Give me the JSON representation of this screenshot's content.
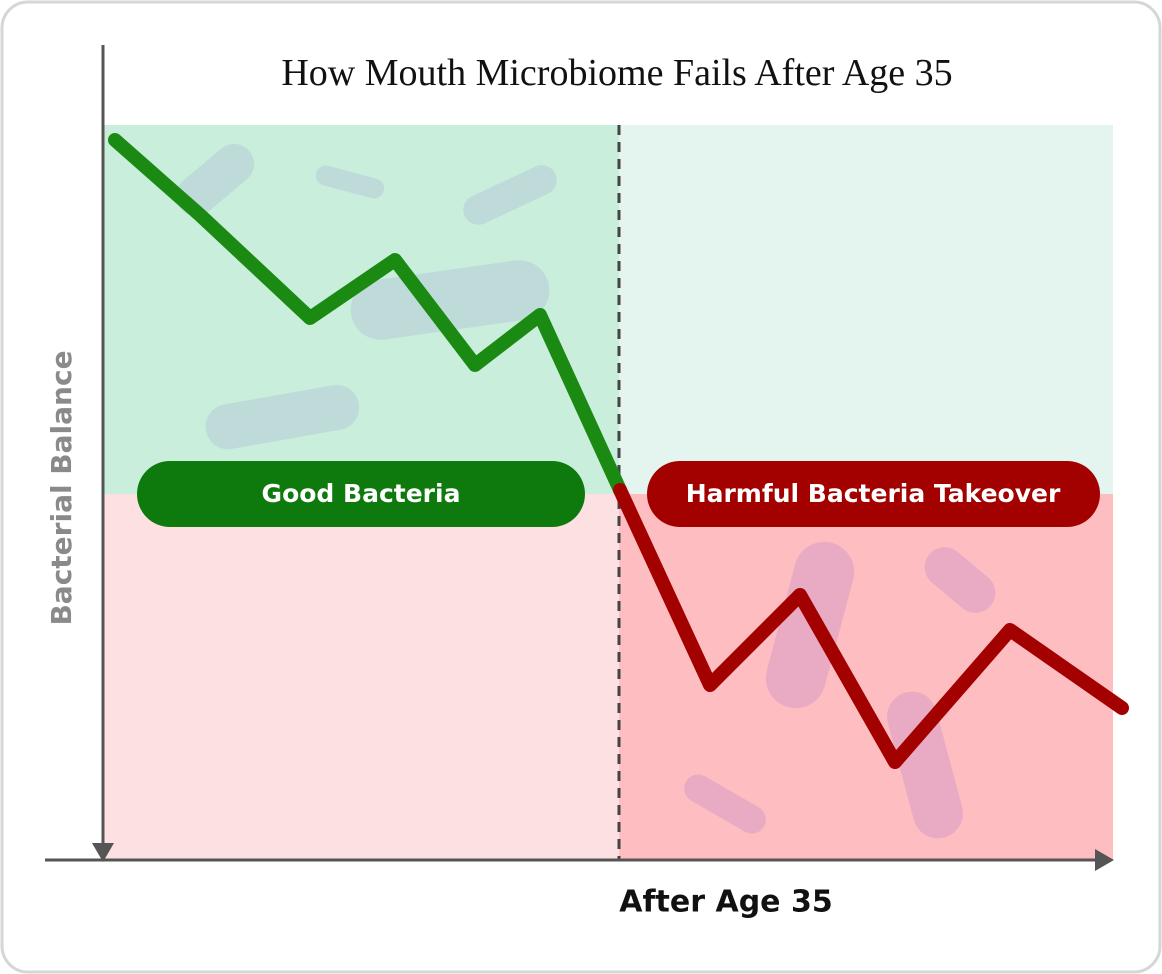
{
  "title": "How Mouth Microbiome Fails After Age 35",
  "y_axis_label": "Bacterial Balance",
  "x_axis_label": "After Age 35",
  "zones": [
    {
      "label": "Good Bacteria"
    },
    {
      "label": "Harmful Bacteria Takeover"
    }
  ]
}
